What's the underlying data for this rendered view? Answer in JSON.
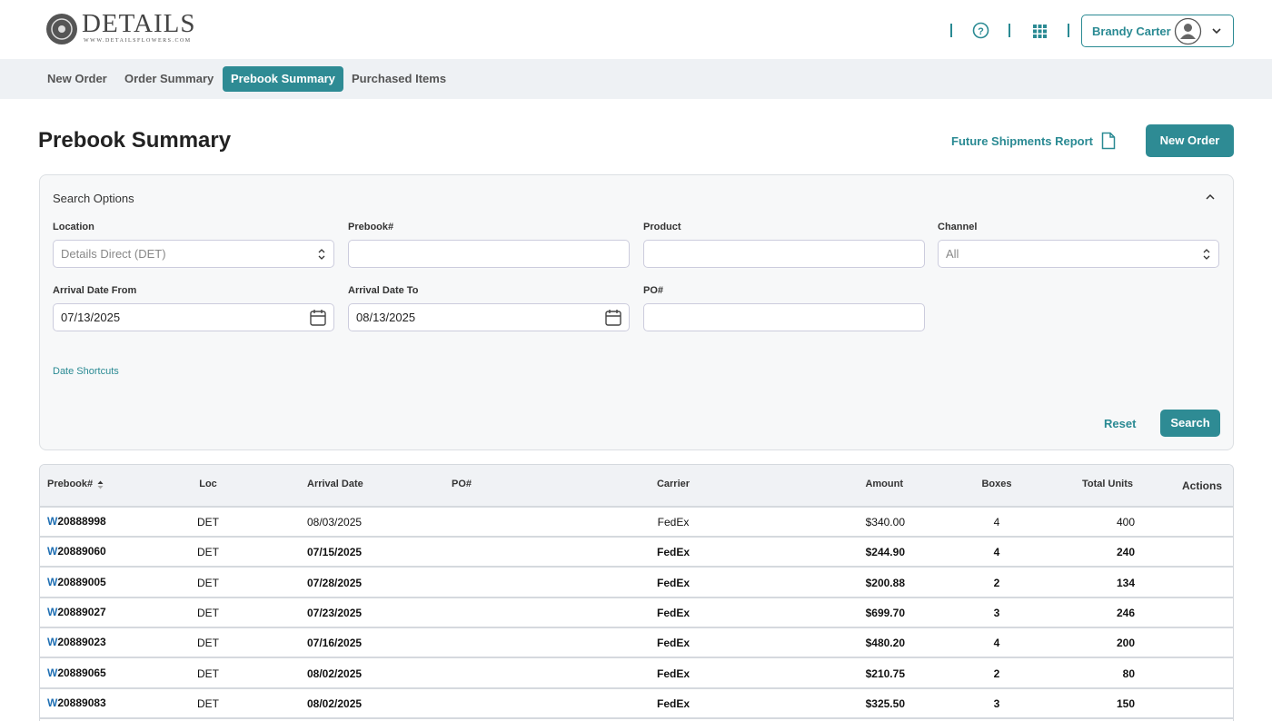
{
  "header": {
    "logo": {
      "name": "DETAILS",
      "url": "WWW.DETAILSFLOWERS.COM"
    },
    "user": "Brandy Carter"
  },
  "nav": {
    "tabs": [
      "New Order",
      "Order Summary",
      "Prebook Summary",
      "Purchased Items"
    ],
    "active": "Prebook Summary"
  },
  "page": {
    "title": "Prebook Summary",
    "report_link": "Future Shipments Report",
    "new_order_button": "New Order"
  },
  "search": {
    "title": "Search Options",
    "fields": [
      {
        "label": "Location",
        "placeholder": "Details Direct (DET)",
        "kind": "select"
      },
      {
        "label": "Prebook#",
        "kind": "text"
      },
      {
        "label": "Product",
        "kind": "text"
      },
      {
        "label": "Channel",
        "placeholder": "All",
        "kind": "select"
      },
      {
        "label": "Arrival Date From",
        "value": "07/13/2025",
        "kind": "date"
      },
      {
        "label": "Arrival Date To",
        "value": "08/13/2025",
        "kind": "date"
      },
      {
        "label": "PO#",
        "kind": "text"
      }
    ],
    "date_shortcuts": "Date Shortcuts",
    "reset": "Reset",
    "search_button": "Search"
  },
  "table": {
    "columns": [
      "Prebook#",
      "Loc",
      "Arrival Date",
      "PO#",
      "Carrier",
      "Amount",
      "Boxes",
      "Total Units",
      "Actions"
    ],
    "rows": [
      {
        "prefix": "W",
        "prebook": "20888998",
        "loc": "DET",
        "arrival": "08/03/2025",
        "carrier": "FedEx",
        "amount": "$340.00",
        "boxes": 4,
        "units": 400
      },
      {
        "prefix": "W",
        "prebook": "20889060",
        "loc": "DET",
        "arrival": "07/15/2025",
        "carrier": "FedEx",
        "amount": "$244.90",
        "boxes": 4,
        "units": 240
      },
      {
        "prefix": "W",
        "prebook": "20889005",
        "loc": "DET",
        "arrival": "07/28/2025",
        "carrier": "FedEx",
        "amount": "$200.88",
        "boxes": 2,
        "units": 134
      },
      {
        "prefix": "W",
        "prebook": "20889027",
        "loc": "DET",
        "arrival": "07/23/2025",
        "carrier": "FedEx",
        "amount": "$699.70",
        "boxes": 3,
        "units": 246
      },
      {
        "prefix": "W",
        "prebook": "20889023",
        "loc": "DET",
        "arrival": "07/16/2025",
        "carrier": "FedEx",
        "amount": "$480.20",
        "boxes": 4,
        "units": 200
      },
      {
        "prefix": "W",
        "prebook": "20889065",
        "loc": "DET",
        "arrival": "08/02/2025",
        "carrier": "FedEx",
        "amount": "$210.75",
        "boxes": 2,
        "units": 80
      },
      {
        "prefix": "W",
        "prebook": "20889083",
        "loc": "DET",
        "arrival": "08/02/2025",
        "carrier": "FedEx",
        "amount": "$325.50",
        "boxes": 3,
        "units": 150
      }
    ]
  }
}
